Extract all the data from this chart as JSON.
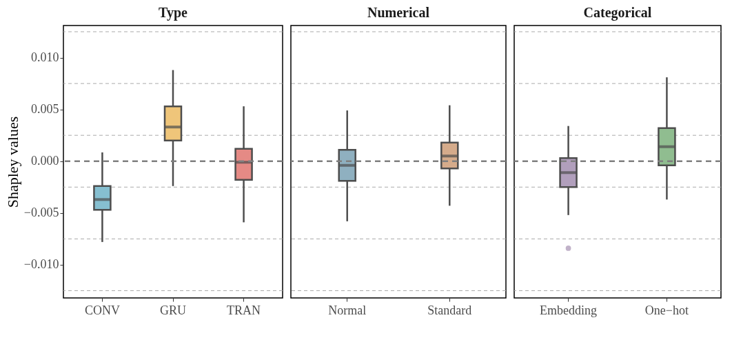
{
  "chart_data": [
    {
      "type": "box",
      "title": "Type",
      "ylabel": "Shapley values",
      "categories": [
        "CONV",
        "GRU",
        "TRAN"
      ],
      "colors": [
        "#86bfd0",
        "#efc57a",
        "#e58a85"
      ],
      "boxes": [
        {
          "low": -0.0078,
          "q1": -0.0047,
          "median": -0.0037,
          "q3": -0.0024,
          "high": 0.00085
        },
        {
          "low": -0.0024,
          "q1": 0.002,
          "median": 0.0033,
          "q3": 0.0053,
          "high": 0.0088
        },
        {
          "low": -0.0059,
          "q1": -0.0018,
          "median": -0.0001,
          "q3": 0.0012,
          "high": 0.0053
        }
      ],
      "ylim": [
        -0.0132,
        0.0131
      ],
      "yticks": [
        {
          "value": -0.0125,
          "label": null
        },
        {
          "value": -0.01,
          "label": "−0.010"
        },
        {
          "value": -0.0075,
          "label": null
        },
        {
          "value": -0.005,
          "label": "−0.005"
        },
        {
          "value": -0.0025,
          "label": null
        },
        {
          "value": 0,
          "label": "0.000"
        },
        {
          "value": 0.0025,
          "label": null
        },
        {
          "value": 0.005,
          "label": "0.005"
        },
        {
          "value": 0.0075,
          "label": null
        },
        {
          "value": 0.01,
          "label": "0.010"
        },
        {
          "value": 0.0125,
          "label": null
        }
      ],
      "grid": true,
      "ref_lines": [
        {
          "axis": "y",
          "value": 0,
          "line_style": "dashed",
          "color": "#7f7f7f"
        }
      ]
    },
    {
      "type": "box",
      "title": "Numerical",
      "categories": [
        "Normal",
        "Standard"
      ],
      "colors": [
        "#8fb0c0",
        "#d5ab8b"
      ],
      "boxes": [
        {
          "low": -0.0058,
          "q1": -0.0019,
          "median": -0.0004,
          "q3": 0.0011,
          "high": 0.0049
        },
        {
          "low": -0.0043,
          "q1": -0.0007,
          "median": 0.0005,
          "q3": 0.0018,
          "high": 0.0054
        }
      ],
      "ylim": [
        -0.0132,
        0.0131
      ],
      "yticks": [
        {
          "value": -0.0125,
          "label": null
        },
        {
          "value": -0.0075,
          "label": null
        },
        {
          "value": -0.0025,
          "label": null
        },
        {
          "value": 0.0025,
          "label": null
        },
        {
          "value": 0.0075,
          "label": null
        },
        {
          "value": 0.0125,
          "label": null
        }
      ],
      "tick_labels": "x",
      "grid": true,
      "ref_lines": [
        {
          "axis": "y",
          "value": 0,
          "line_style": "dashed",
          "color": "#7f7f7f"
        }
      ]
    },
    {
      "type": "box",
      "title": "Categorical",
      "categories": [
        "Embedding",
        "One−hot"
      ],
      "colors": [
        "#b19fbc",
        "#90bd90"
      ],
      "boxes": [
        {
          "low": -0.0052,
          "q1": -0.0025,
          "median": -0.0011,
          "q3": 0.0003,
          "high": 0.0034,
          "outliers": [
            -0.0084
          ]
        },
        {
          "low": -0.0037,
          "q1": -0.0004,
          "median": 0.0014,
          "q3": 0.0032,
          "high": 0.0081
        }
      ],
      "ylim": [
        -0.0132,
        0.0131
      ],
      "yticks": [
        {
          "value": -0.0125,
          "label": null
        },
        {
          "value": -0.0075,
          "label": null
        },
        {
          "value": -0.0025,
          "label": null
        },
        {
          "value": 0.0025,
          "label": null
        },
        {
          "value": 0.0075,
          "label": null
        },
        {
          "value": 0.0125,
          "label": null
        }
      ],
      "tick_labels": "x",
      "grid": true,
      "ref_lines": [
        {
          "axis": "y",
          "value": 0,
          "line_style": "dashed",
          "color": "#7f7f7f"
        }
      ]
    }
  ]
}
